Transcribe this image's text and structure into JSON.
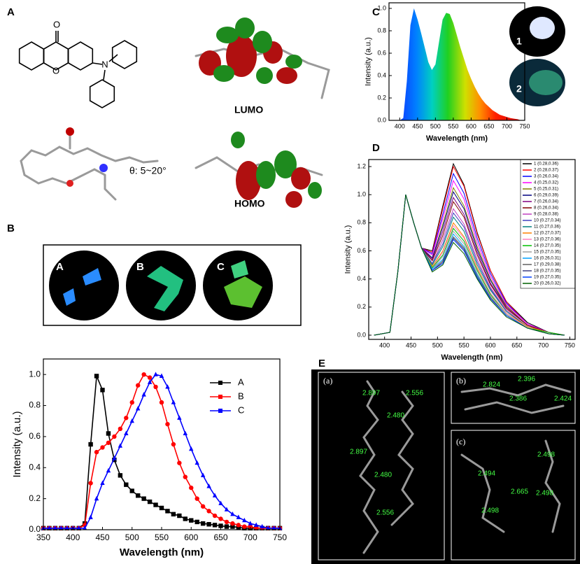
{
  "figure": {
    "panel_labels": [
      "A",
      "B",
      "C",
      "D",
      "E"
    ],
    "panel_a": {
      "carbonyl_o": "O",
      "ring_o": "O",
      "amine_n": "N",
      "lumo": "LUMO",
      "homo": "HOMO",
      "angle": "θ: 5~20°"
    },
    "panel_b": {
      "photo_labels": [
        "A",
        "B",
        "C"
      ]
    },
    "panel_c": {
      "inset_labels": [
        "1",
        "2"
      ]
    },
    "panel_e": {
      "subpanels": [
        {
          "label": "(a)",
          "distances": [
            "2.897",
            "2.556",
            "2.480",
            "2.897",
            "2.480",
            "2.556"
          ]
        },
        {
          "label": "(b)",
          "distances": [
            "2.396",
            "2.824",
            "2.386",
            "2.424"
          ]
        },
        {
          "label": "(c)",
          "distances": [
            "2.498",
            "2.494",
            "2.665",
            "2.498",
            "2.498"
          ]
        }
      ]
    }
  },
  "chart_data": [
    {
      "type": "line",
      "xlabel": "Wavelength (nm)",
      "ylabel": "Intensity (a.u.)",
      "x": [
        350,
        360,
        370,
        380,
        390,
        400,
        410,
        420,
        430,
        440,
        450,
        460,
        470,
        480,
        490,
        500,
        510,
        520,
        530,
        540,
        550,
        560,
        570,
        580,
        590,
        600,
        610,
        620,
        630,
        640,
        650,
        660,
        670,
        680,
        690,
        700,
        710,
        720,
        730,
        740,
        750
      ],
      "series": [
        {
          "name": "A",
          "color": "#000000",
          "marker": "square",
          "values": [
            0.01,
            0.01,
            0.01,
            0.01,
            0.01,
            0.01,
            0.01,
            0.04,
            0.55,
            0.99,
            0.9,
            0.62,
            0.45,
            0.35,
            0.29,
            0.25,
            0.22,
            0.2,
            0.18,
            0.16,
            0.14,
            0.12,
            0.1,
            0.09,
            0.07,
            0.06,
            0.05,
            0.04,
            0.035,
            0.03,
            0.025,
            0.02,
            0.02,
            0.015,
            0.01,
            0.01,
            0.01,
            0.01,
            0.01,
            0.01,
            0.01
          ]
        },
        {
          "name": "B",
          "color": "#ff0000",
          "marker": "circle",
          "values": [
            0.01,
            0.01,
            0.01,
            0.01,
            0.01,
            0.01,
            0.01,
            0.03,
            0.3,
            0.5,
            0.53,
            0.56,
            0.6,
            0.65,
            0.72,
            0.82,
            0.93,
            1.0,
            0.98,
            0.92,
            0.82,
            0.68,
            0.55,
            0.43,
            0.34,
            0.27,
            0.2,
            0.15,
            0.12,
            0.09,
            0.07,
            0.05,
            0.04,
            0.03,
            0.02,
            0.02,
            0.01,
            0.01,
            0.01,
            0.01,
            0.01
          ]
        },
        {
          "name": "C",
          "color": "#0000ff",
          "marker": "triangle",
          "values": [
            0.01,
            0.01,
            0.01,
            0.01,
            0.01,
            0.01,
            0.01,
            0.01,
            0.08,
            0.2,
            0.3,
            0.38,
            0.46,
            0.54,
            0.62,
            0.7,
            0.78,
            0.87,
            0.95,
            1.0,
            0.99,
            0.92,
            0.82,
            0.72,
            0.62,
            0.52,
            0.43,
            0.35,
            0.28,
            0.22,
            0.17,
            0.13,
            0.1,
            0.08,
            0.06,
            0.04,
            0.03,
            0.02,
            0.01,
            0.01,
            0.01
          ]
        }
      ],
      "xlim": [
        350,
        750
      ],
      "ylim": [
        0,
        1.1
      ],
      "xticks": [
        350,
        400,
        450,
        500,
        550,
        600,
        650,
        700,
        750
      ],
      "yticks": [
        {
          "value": 0,
          "label": "0.0"
        },
        0.2,
        0.4,
        0.6,
        0.8,
        {
          "value": 1,
          "label": "1.0"
        }
      ],
      "legend": "upper right"
    },
    {
      "type": "area",
      "xlabel": "Wavelength (nm)",
      "ylabel": "Intensity (a.u.)",
      "x": [
        380,
        390,
        400,
        410,
        420,
        430,
        440,
        450,
        460,
        470,
        480,
        490,
        500,
        510,
        520,
        530,
        540,
        550,
        560,
        570,
        580,
        590,
        600,
        610,
        620,
        630,
        640,
        650,
        660,
        670,
        680,
        690,
        700,
        710,
        720,
        730,
        740,
        750
      ],
      "values": [
        0,
        0,
        0,
        0.02,
        0.35,
        0.85,
        1.0,
        0.9,
        0.78,
        0.65,
        0.52,
        0.45,
        0.5,
        0.7,
        0.9,
        0.96,
        0.95,
        0.87,
        0.76,
        0.65,
        0.55,
        0.45,
        0.37,
        0.3,
        0.24,
        0.19,
        0.15,
        0.12,
        0.09,
        0.07,
        0.05,
        0.04,
        0.03,
        0.02,
        0.015,
        0.01,
        0,
        0
      ],
      "xlim": [
        370,
        750
      ],
      "ylim": [
        0,
        1.05
      ],
      "xticks": [
        400,
        450,
        500,
        550,
        600,
        650,
        700,
        750
      ],
      "yticks": [
        {
          "value": 0,
          "label": "0.0"
        },
        0.2,
        0.4,
        0.6,
        0.8,
        {
          "value": 1,
          "label": "1.0"
        }
      ]
    },
    {
      "type": "line",
      "xlabel": "Wavelength (nm)",
      "ylabel": "Intensity (a.u.)",
      "x": [
        380,
        410,
        425,
        440,
        455,
        470,
        490,
        510,
        530,
        550,
        575,
        600,
        630,
        670,
        710,
        740
      ],
      "series": [
        {
          "name": "1 (0.28,0.36)",
          "color": "#000000",
          "values": [
            0,
            0.02,
            0.45,
            1.0,
            0.8,
            0.62,
            0.6,
            0.92,
            1.22,
            1.07,
            0.73,
            0.46,
            0.24,
            0.09,
            0.02,
            0
          ]
        },
        {
          "name": "2 (0.28,0.37)",
          "color": "#ff0000",
          "values": [
            0,
            0.02,
            0.45,
            1.0,
            0.8,
            0.62,
            0.59,
            0.9,
            1.2,
            1.06,
            0.72,
            0.46,
            0.24,
            0.08,
            0.02,
            0
          ]
        },
        {
          "name": "3 (0.26,0.34)",
          "color": "#0000ff",
          "values": [
            0,
            0.02,
            0.45,
            1.0,
            0.8,
            0.62,
            0.58,
            0.86,
            1.15,
            1.01,
            0.69,
            0.44,
            0.23,
            0.08,
            0.02,
            0
          ]
        },
        {
          "name": "4 (0.25,0.32)",
          "color": "#ff00ff",
          "values": [
            0,
            0.02,
            0.45,
            1.0,
            0.8,
            0.62,
            0.57,
            0.83,
            1.1,
            0.97,
            0.66,
            0.42,
            0.22,
            0.08,
            0.02,
            0
          ]
        },
        {
          "name": "5 (0.25,0.31)",
          "color": "#808000",
          "values": [
            0,
            0.02,
            0.45,
            1.0,
            0.8,
            0.62,
            0.55,
            0.79,
            1.05,
            0.92,
            0.63,
            0.4,
            0.21,
            0.07,
            0.02,
            0
          ]
        },
        {
          "name": "6 (0.29,0.39)",
          "color": "#000080",
          "values": [
            0,
            0.02,
            0.45,
            1.0,
            0.8,
            0.62,
            0.55,
            0.77,
            1.02,
            0.9,
            0.61,
            0.39,
            0.2,
            0.07,
            0.02,
            0
          ]
        },
        {
          "name": "7 (0.26,0.34)",
          "color": "#800080",
          "values": [
            0,
            0.02,
            0.45,
            1.0,
            0.8,
            0.62,
            0.54,
            0.74,
            0.98,
            0.86,
            0.59,
            0.37,
            0.2,
            0.07,
            0.02,
            0
          ]
        },
        {
          "name": "8 (0.26,0.34)",
          "color": "#800000",
          "values": [
            0,
            0.02,
            0.45,
            1.0,
            0.8,
            0.62,
            0.53,
            0.71,
            0.95,
            0.84,
            0.57,
            0.36,
            0.19,
            0.07,
            0.02,
            0
          ]
        },
        {
          "name": "9 (0.28,0.38)",
          "color": "#c040c0",
          "values": [
            0,
            0.02,
            0.45,
            1.0,
            0.8,
            0.62,
            0.51,
            0.68,
            0.9,
            0.79,
            0.54,
            0.34,
            0.18,
            0.06,
            0.02,
            0
          ]
        },
        {
          "name": "10 (0.27,0.34)",
          "color": "#4040c0",
          "values": [
            0,
            0.02,
            0.45,
            1.0,
            0.8,
            0.62,
            0.51,
            0.65,
            0.87,
            0.77,
            0.52,
            0.33,
            0.17,
            0.06,
            0.02,
            0
          ]
        },
        {
          "name": "11 (0.27,0.36)",
          "color": "#008080",
          "values": [
            0,
            0.02,
            0.45,
            1.0,
            0.8,
            0.62,
            0.5,
            0.63,
            0.84,
            0.74,
            0.5,
            0.32,
            0.17,
            0.06,
            0.02,
            0
          ]
        },
        {
          "name": "12 (0.27,0.37)",
          "color": "#ff8000",
          "values": [
            0,
            0.02,
            0.45,
            1.0,
            0.8,
            0.62,
            0.49,
            0.6,
            0.8,
            0.7,
            0.48,
            0.3,
            0.16,
            0.06,
            0.02,
            0
          ]
        },
        {
          "name": "13 (0.27,0.36)",
          "color": "#ff80c0",
          "values": [
            0,
            0.02,
            0.45,
            1.0,
            0.8,
            0.62,
            0.48,
            0.59,
            0.78,
            0.69,
            0.47,
            0.3,
            0.16,
            0.05,
            0.02,
            0
          ]
        },
        {
          "name": "14 (0.27,0.35)",
          "color": "#00c000",
          "values": [
            0,
            0.02,
            0.45,
            1.0,
            0.8,
            0.62,
            0.48,
            0.57,
            0.76,
            0.67,
            0.46,
            0.29,
            0.15,
            0.05,
            0.02,
            0
          ]
        },
        {
          "name": "15 (0.27,0.35)",
          "color": "#a0a0a0",
          "values": [
            0,
            0.02,
            0.45,
            1.0,
            0.8,
            0.62,
            0.47,
            0.56,
            0.74,
            0.65,
            0.44,
            0.28,
            0.15,
            0.05,
            0.01,
            0
          ]
        },
        {
          "name": "16 (0.26,0.31)",
          "color": "#00a0ff",
          "values": [
            0,
            0.02,
            0.45,
            1.0,
            0.8,
            0.62,
            0.47,
            0.54,
            0.72,
            0.63,
            0.43,
            0.27,
            0.14,
            0.05,
            0.01,
            0
          ]
        },
        {
          "name": "17 (0.29,0.38)",
          "color": "#606060",
          "values": [
            0,
            0.02,
            0.45,
            1.0,
            0.8,
            0.62,
            0.46,
            0.53,
            0.7,
            0.62,
            0.42,
            0.27,
            0.14,
            0.05,
            0.01,
            0
          ]
        },
        {
          "name": "18 (0.27,0.35)",
          "color": "#404080",
          "values": [
            0,
            0.02,
            0.45,
            1.0,
            0.8,
            0.62,
            0.46,
            0.52,
            0.69,
            0.61,
            0.41,
            0.26,
            0.14,
            0.05,
            0.01,
            0
          ]
        },
        {
          "name": "19 (0.27,0.35)",
          "color": "#0040ff",
          "values": [
            0,
            0.02,
            0.45,
            1.0,
            0.8,
            0.62,
            0.46,
            0.51,
            0.68,
            0.6,
            0.41,
            0.26,
            0.14,
            0.05,
            0.01,
            0
          ]
        },
        {
          "name": "20 (0.26,0.32)",
          "color": "#006000",
          "values": [
            0,
            0.02,
            0.45,
            1.0,
            0.8,
            0.62,
            0.45,
            0.5,
            0.66,
            0.58,
            0.4,
            0.25,
            0.13,
            0.05,
            0.01,
            0
          ]
        }
      ],
      "xlim": [
        370,
        760
      ],
      "ylim": [
        -0.03,
        1.25
      ],
      "xticks": [
        400,
        450,
        500,
        550,
        600,
        650,
        700,
        750
      ],
      "yticks": [
        {
          "value": 0,
          "label": "0.0"
        },
        0.2,
        0.4,
        0.6,
        0.8,
        {
          "value": 1,
          "label": "1.0"
        },
        1.2
      ],
      "legend": "upper right"
    }
  ]
}
